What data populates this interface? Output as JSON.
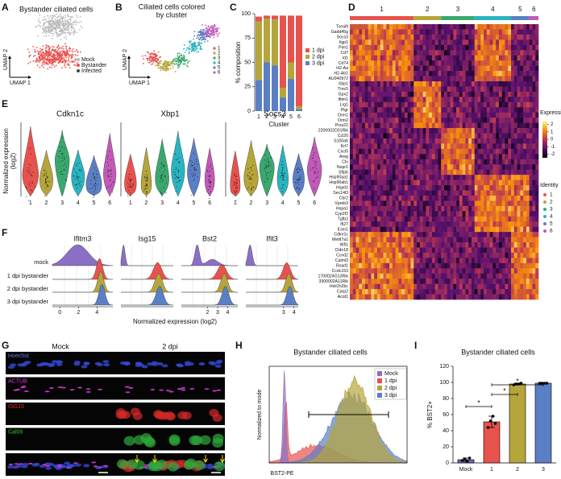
{
  "figure": {
    "A": {
      "letter": "A",
      "title": "Bystander ciliated cells",
      "x_label": "UMAP 1",
      "y_label": "UMAP 2",
      "legend": [
        "Mock",
        "Bystander",
        "Infected"
      ]
    },
    "B": {
      "letter": "B",
      "title_lines": [
        "Ciliated cells colored",
        "by cluster"
      ],
      "x_label": "UMAP 1",
      "y_label": "UMAP 2",
      "legend": [
        "1",
        "2",
        "3",
        "4",
        "5",
        "6"
      ]
    },
    "D": {
      "letter": "D",
      "clusters": [
        "1",
        "2",
        "3",
        "4",
        "5",
        "6"
      ],
      "genes": [
        "Tceal9",
        "Gadd45g",
        "Socs3",
        "Iigp1",
        "Pim1",
        "Cd7",
        "Id1",
        "Cd74",
        "H2-Aa",
        "H2-Ab1",
        "AU040972",
        "Xbp1",
        "Tmc5",
        "Gpx2",
        "Ifitm1",
        "Lrg1",
        "Pigr",
        "Orm1",
        "Orm2",
        "Prss22",
        "2200002D01Rik",
        "Ccl20",
        "S100a6",
        "Krt7",
        "Cxcl5",
        "Areg",
        "Clu",
        "Nupr1",
        "Sftpb",
        "Hsp90aa1",
        "Hsp90ab1",
        "Hspd1",
        "Sec14l3",
        "Cbr2",
        "Vpreb3",
        "Hspa1",
        "Cyp2f2",
        "Tgfb2",
        "Ifi27",
        "Esm1",
        "Cdkn1c",
        "Mettl7a1",
        "Wfi1",
        "Cldn18",
        "Ccnd2",
        "Calml3",
        "Rsad1",
        "Ccdc153",
        "1700024G13Rik",
        "3300002A11Rik",
        "Hist1h2bc",
        "Carp2",
        "Acot1"
      ],
      "expression_title": "Expression",
      "expression_lim": [
        -2.5,
        2.5
      ],
      "expression_ticks": [
        2,
        1,
        0,
        -1,
        -2
      ],
      "identity_title": "Identity",
      "identity_labels": [
        "1",
        "2",
        "3",
        "4",
        "5",
        "6"
      ]
    },
    "E": {
      "letter": "E",
      "y_label_lines": [
        "Normalized expression",
        "(log2)"
      ],
      "genes": [
        "Cdkn1c",
        "Xbp1",
        "Socs3"
      ],
      "categories": [
        "1",
        "2",
        "3",
        "4",
        "5",
        "6"
      ]
    },
    "F": {
      "letter": "F",
      "rows": [
        "mock",
        "1 dpi bystander",
        "2 dpi bystander",
        "3 dpi bystander"
      ],
      "x_label": "Normalized expression (log2)",
      "panels": [
        {
          "gene": "Ifitm3",
          "xlim": [
            -0.8,
            5.7
          ],
          "xticks": [
            0,
            2,
            4
          ]
        },
        {
          "gene": "Isg15"
        },
        {
          "gene": "Bst2",
          "xlim": [
            -0.6,
            5
          ],
          "xticks": [
            2,
            3,
            4
          ]
        },
        {
          "gene": "Ifit3",
          "xlim": [
            -0.6,
            4.4
          ],
          "xticks": [
            3,
            4
          ]
        }
      ]
    },
    "G": {
      "letter": "G",
      "columns": [
        "Mock",
        "2 dpi"
      ],
      "channels": [
        "Hoechst",
        "ACTUB",
        "ISG15",
        "Cal09"
      ]
    },
    "H": {
      "letter": "H",
      "title": "Bystander ciliated cells",
      "y_label": "Normalized to mode",
      "x_label": "BST2-PE",
      "legend": [
        "Mock",
        "1 dpi",
        "2 dpi",
        "3 dpi"
      ]
    }
  },
  "chart_data": [
    {
      "type": "stacked-bar",
      "panel_label": "C",
      "y_label": "% composition",
      "x_label": "Cluster",
      "categories": [
        "1",
        "2",
        "3",
        "4",
        "5",
        "6"
      ],
      "ylim": [
        0,
        100
      ],
      "yticks": [
        0,
        25,
        50,
        75,
        100
      ],
      "series": [
        {
          "name": "3 dpi",
          "color": "#5b7fc4",
          "values": [
            32,
            50,
            47,
            14,
            33,
            2
          ]
        },
        {
          "name": "2 dpi",
          "color": "#b5a53a",
          "values": [
            60,
            45,
            47,
            10,
            17,
            3
          ]
        },
        {
          "name": "1 dpi",
          "color": "#e8524e",
          "values": [
            5,
            3,
            4,
            74,
            48,
            93
          ]
        }
      ],
      "legend_order": [
        "1 dpi",
        "2 dpi",
        "3 dpi"
      ]
    },
    {
      "type": "bar",
      "panel_label": "I",
      "title": "Bystander ciliated cells",
      "y_label": "% BST2+",
      "categories": [
        "Mock",
        "1",
        "2",
        "3"
      ],
      "values": [
        4,
        51,
        98,
        99
      ],
      "errors": [
        2,
        7,
        1,
        0.5
      ],
      "points": [
        [
          3,
          5,
          2,
          6
        ],
        [
          44,
          52,
          58,
          49
        ],
        [
          97,
          98,
          98,
          99
        ],
        [
          99,
          99,
          99,
          99
        ]
      ],
      "colors": [
        "#7b5fb0",
        "#e8524e",
        "#b5a53a",
        "#5b7fc4"
      ],
      "ylim": [
        0,
        120
      ],
      "yticks": [
        0,
        20,
        40,
        60,
        80,
        100,
        120
      ],
      "significance": [
        "*",
        "*",
        "*"
      ]
    }
  ]
}
